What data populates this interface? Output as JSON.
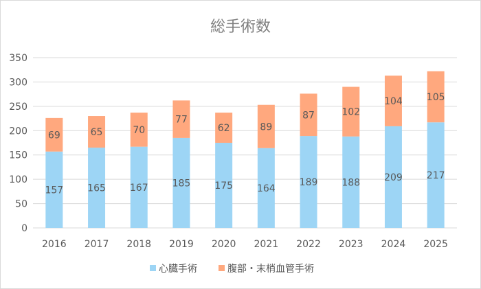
{
  "chart_data": {
    "type": "bar",
    "stacked": true,
    "title": "総手術数",
    "xlabel": "",
    "ylabel": "",
    "categories": [
      "2016",
      "2017",
      "2018",
      "2019",
      "2020",
      "2021",
      "2022",
      "2023",
      "2024",
      "2025"
    ],
    "series": [
      {
        "name": "心臓手術",
        "color": "#9DD5F5",
        "values": [
          157,
          165,
          167,
          185,
          175,
          164,
          189,
          188,
          209,
          217
        ]
      },
      {
        "name": "腹部・末梢血管手術",
        "color": "#FFA87E",
        "values": [
          69,
          65,
          70,
          77,
          62,
          89,
          87,
          102,
          104,
          105
        ]
      }
    ],
    "ylim": [
      0,
      350
    ],
    "yticks": [
      0,
      50,
      100,
      150,
      200,
      250,
      300,
      350
    ],
    "grid": true,
    "legend": "bottom",
    "data_labels": true
  }
}
